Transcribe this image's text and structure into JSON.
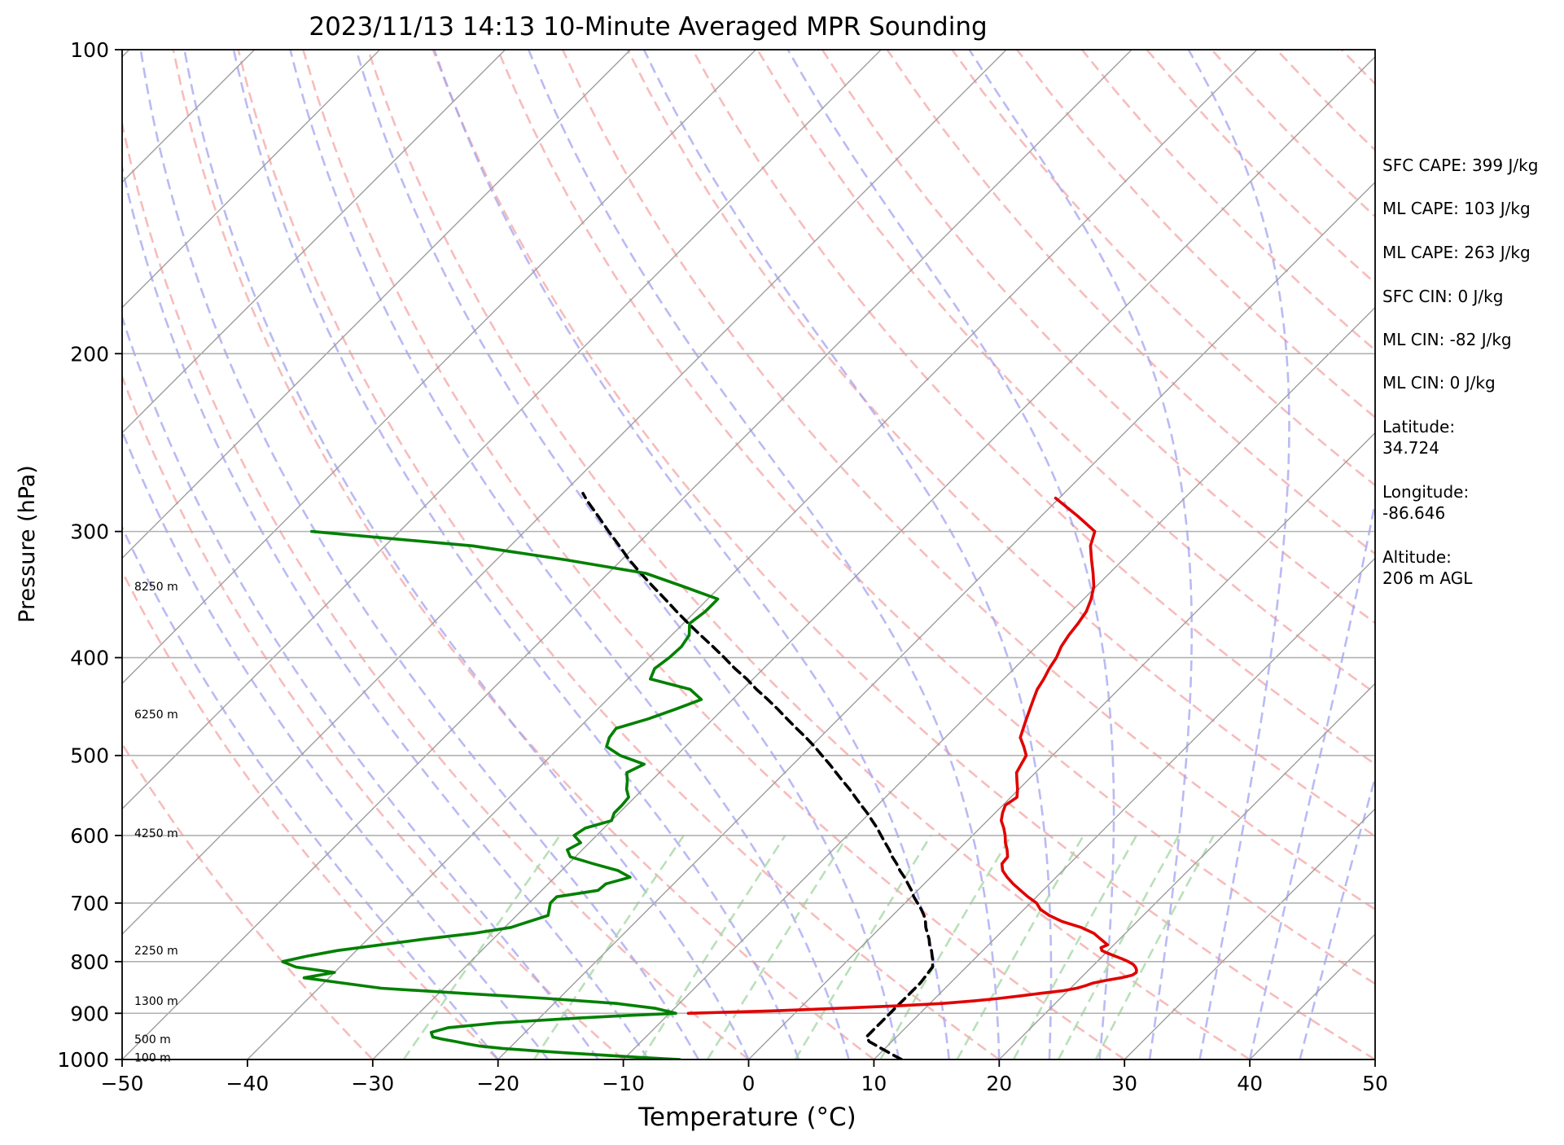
{
  "chart_data": {
    "type": "line",
    "subtype": "skew-T log-P sounding",
    "title": "2023/11/13 14:13 10-Minute Averaged MPR Sounding",
    "xlabel": "Temperature (°C)",
    "ylabel": "Pressure (hPa)",
    "xlim": [
      -50,
      50
    ],
    "ylim": [
      1000,
      100
    ],
    "y_scale": "log",
    "x_ticks": [
      "−50",
      "−40",
      "−30",
      "−20",
      "−10",
      "0",
      "10",
      "20",
      "30",
      "40",
      "50"
    ],
    "y_ticks": [
      "100",
      "200",
      "300",
      "400",
      "500",
      "600",
      "700",
      "800",
      "900",
      "1000"
    ],
    "grid": "horizontal at pressure ticks",
    "legend": "none",
    "colors": {
      "temperature": "#e00000",
      "dewpoint": "#008000",
      "parcel": "#000000",
      "dry_adiabat": "#f4a6a6",
      "moist_adiabat": "#a3a3f0",
      "mixing_ratio": "#a8d8a8",
      "isotherm": "#9e9e9e"
    },
    "series": [
      {
        "key": "temperature",
        "pressure": [
          900,
          895,
          890,
          885,
          880,
          875,
          870,
          865,
          860,
          855,
          850,
          845,
          840,
          835,
          830,
          825,
          820,
          815,
          810,
          805,
          800,
          795,
          790,
          785,
          780,
          775,
          770,
          760,
          750,
          740,
          730,
          720,
          710,
          700,
          690,
          680,
          670,
          660,
          650,
          640,
          630,
          620,
          610,
          600,
          590,
          580,
          570,
          560,
          550,
          540,
          530,
          520,
          510,
          500,
          490,
          480,
          470,
          460,
          450,
          440,
          430,
          420,
          410,
          400,
          390,
          380,
          370,
          360,
          350,
          340,
          330,
          320,
          310,
          300,
          290,
          278
        ],
        "temp": [
          -8.5,
          -2,
          3,
          7.5,
          11,
          13.3,
          15.1,
          16.6,
          18,
          19.6,
          20.5,
          21,
          21.4,
          22.2,
          23.2,
          23.9,
          24,
          23.8,
          23.5,
          23.1,
          22.5,
          21.8,
          21,
          20.2,
          19.5,
          19.2,
          19.5,
          18.5,
          17.5,
          16,
          14,
          12.5,
          11.3,
          10.5,
          9.3,
          8.2,
          7.1,
          6.1,
          5.2,
          4.6,
          4.5,
          3.9,
          3.2,
          2.6,
          1.9,
          1.1,
          0.6,
          0.2,
          0.5,
          -0.1,
          -0.8,
          -1.5,
          -1.8,
          -2.1,
          -3,
          -4,
          -4.5,
          -5,
          -5.5,
          -6,
          -6.5,
          -6.8,
          -7.2,
          -7.5,
          -8,
          -8.3,
          -8.5,
          -8.8,
          -9.4,
          -10.2,
          -11.3,
          -12.5,
          -13.7,
          -14.5,
          -17,
          -20.3
        ]
      },
      {
        "key": "dewpoint",
        "pressure": [
          1000,
          995,
          990,
          985,
          980,
          975,
          970,
          965,
          960,
          955,
          950,
          940,
          930,
          920,
          910,
          905,
          900,
          895,
          890,
          880,
          870,
          860,
          850,
          840,
          830,
          820,
          810,
          800,
          790,
          780,
          770,
          760,
          750,
          740,
          720,
          700,
          690,
          680,
          670,
          660,
          650,
          640,
          630,
          620,
          610,
          600,
          590,
          580,
          570,
          560,
          550,
          540,
          530,
          520,
          510,
          500,
          490,
          480,
          470,
          460,
          450,
          440,
          430,
          420,
          410,
          400,
          390,
          380,
          370,
          360,
          350,
          340,
          330,
          320,
          310,
          300
        ],
        "dewp": [
          -5.5,
          -9,
          -12,
          -15,
          -18,
          -20.5,
          -22.5,
          -23.7,
          -24.8,
          -26,
          -27,
          -27.5,
          -26.5,
          -23,
          -17,
          -13.5,
          -9.5,
          -10.5,
          -11.5,
          -15,
          -21,
          -28,
          -35,
          -38.5,
          -42,
          -40,
          -43.5,
          -45,
          -43.5,
          -41.5,
          -38.5,
          -35.5,
          -32,
          -29.5,
          -27.5,
          -28.3,
          -28.3,
          -25.5,
          -25.4,
          -24,
          -25.5,
          -28,
          -30.4,
          -31.2,
          -30.7,
          -31.8,
          -31.5,
          -30,
          -30.4,
          -30.4,
          -30.5,
          -31.3,
          -31.9,
          -32.6,
          -31.9,
          -34.5,
          -36.3,
          -36.8,
          -37,
          -35.2,
          -33.8,
          -32.5,
          -34.2,
          -38.2,
          -38.7,
          -38.4,
          -38.3,
          -38.6,
          -39.5,
          -39.2,
          -39.2,
          -43,
          -47,
          -54.5,
          -63,
          -77
        ]
      },
      {
        "key": "parcel",
        "pressure": [
          1000,
          990,
          980,
          970,
          960,
          950,
          940,
          930,
          920,
          910,
          900,
          890,
          880,
          870,
          860,
          850,
          840,
          830,
          820,
          810,
          800,
          790,
          780,
          770,
          760,
          750,
          740,
          730,
          720,
          710,
          700,
          690,
          680,
          670,
          660,
          650,
          640,
          630,
          620,
          610,
          600,
          590,
          580,
          570,
          560,
          550,
          540,
          530,
          520,
          510,
          500,
          490,
          480,
          470,
          460,
          450,
          440,
          430,
          420,
          410,
          400,
          390,
          380,
          370,
          360,
          350,
          340,
          330,
          320,
          310,
          300,
          290,
          280,
          275
        ],
        "temp": [
          12.2,
          11.2,
          10.2,
          9.2,
          8.2,
          7.6,
          7.6,
          7.6,
          7.6,
          7.6,
          7.6,
          7.6,
          7.6,
          7.6,
          7.6,
          7.6,
          7.6,
          7.5,
          7.4,
          7.3,
          6.9,
          6.4,
          5.9,
          5.3,
          4.8,
          4.2,
          3.6,
          3.1,
          2.5,
          1.8,
          1.0,
          0.2,
          -0.5,
          -1.3,
          -2.1,
          -3.0,
          -3.8,
          -4.7,
          -5.5,
          -6.4,
          -7.3,
          -8.2,
          -9.2,
          -10.2,
          -11.3,
          -12.4,
          -13.5,
          -14.7,
          -15.9,
          -17.1,
          -18.4,
          -19.7,
          -21.1,
          -22.6,
          -24.1,
          -25.6,
          -27.2,
          -28.9,
          -30.5,
          -32.3,
          -34.0,
          -35.8,
          -37.7,
          -39.6,
          -41.5,
          -43.4,
          -45.4,
          -47.4,
          -49.4,
          -51.3,
          -53.3,
          -55.3,
          -57.4,
          -58.4
        ]
      }
    ],
    "height_labels": [
      {
        "label": "8250 m",
        "pressure": 340
      },
      {
        "label": "6250 m",
        "pressure": 455
      },
      {
        "label": "4250 m",
        "pressure": 597
      },
      {
        "label": "2250 m",
        "pressure": 780
      },
      {
        "label": "1300 m",
        "pressure": 875
      },
      {
        "label": "500 m",
        "pressure": 955
      },
      {
        "label": "100 m",
        "pressure": 995
      }
    ]
  },
  "info_panel": {
    "sfc_cape": "SFC CAPE: 399 J/kg",
    "ml_cape_1": "ML CAPE: 103 J/kg",
    "ml_cape_2": "ML CAPE: 263 J/kg",
    "sfc_cin": "SFC CIN: 0 J/kg",
    "ml_cin_1": "ML CIN: -82 J/kg",
    "ml_cin_2": "ML CIN: 0 J/kg",
    "latitude_label": "Latitude:",
    "latitude_value": "34.724",
    "longitude_label": "Longitude:",
    "longitude_value": "-86.646",
    "altitude_label": "Altitude:",
    "altitude_value": "206 m AGL"
  }
}
